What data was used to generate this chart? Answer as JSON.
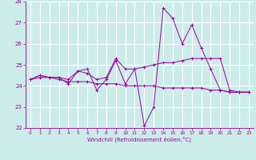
{
  "xlabel": "Windchill (Refroidissement éolien,°C)",
  "xlim": [
    -0.5,
    23.5
  ],
  "ylim": [
    22,
    28
  ],
  "yticks": [
    22,
    23,
    24,
    25,
    26,
    27,
    28
  ],
  "xticks": [
    0,
    1,
    2,
    3,
    4,
    5,
    6,
    7,
    8,
    9,
    10,
    11,
    12,
    13,
    14,
    15,
    16,
    17,
    18,
    19,
    20,
    21,
    22,
    23
  ],
  "bg_color": "#ccecea",
  "line_color": "#990099",
  "grid_color": "#ffffff",
  "lines": [
    {
      "x": [
        0,
        1,
        2,
        3,
        4,
        5,
        6,
        7,
        8,
        9,
        10,
        11,
        12,
        13,
        14,
        15,
        16,
        17,
        18,
        19,
        20,
        21,
        22,
        23
      ],
      "y": [
        24.3,
        24.5,
        24.4,
        24.4,
        24.3,
        24.7,
        24.6,
        24.3,
        24.4,
        25.3,
        24.8,
        24.8,
        24.9,
        25.0,
        25.1,
        25.1,
        25.2,
        25.3,
        25.3,
        25.3,
        25.3,
        23.8,
        23.7,
        23.7
      ]
    },
    {
      "x": [
        0,
        1,
        2,
        3,
        4,
        5,
        6,
        7,
        8,
        9,
        10,
        11,
        12,
        13,
        14,
        15,
        16,
        17,
        18,
        19,
        20,
        21,
        22,
        23
      ],
      "y": [
        24.3,
        24.5,
        24.4,
        24.4,
        24.1,
        24.7,
        24.8,
        23.8,
        24.3,
        25.2,
        24.1,
        24.8,
        22.1,
        23.0,
        27.7,
        27.2,
        26.0,
        26.9,
        25.8,
        24.8,
        23.8,
        23.7,
        23.7,
        23.7
      ]
    },
    {
      "x": [
        0,
        1,
        2,
        3,
        4,
        5,
        6,
        7,
        8,
        9,
        10,
        11,
        12,
        13,
        14,
        15,
        16,
        17,
        18,
        19,
        20,
        21,
        22,
        23
      ],
      "y": [
        24.3,
        24.4,
        24.4,
        24.3,
        24.2,
        24.2,
        24.2,
        24.1,
        24.1,
        24.1,
        24.0,
        24.0,
        24.0,
        24.0,
        23.9,
        23.9,
        23.9,
        23.9,
        23.9,
        23.8,
        23.8,
        23.7,
        23.7,
        23.7
      ]
    }
  ]
}
